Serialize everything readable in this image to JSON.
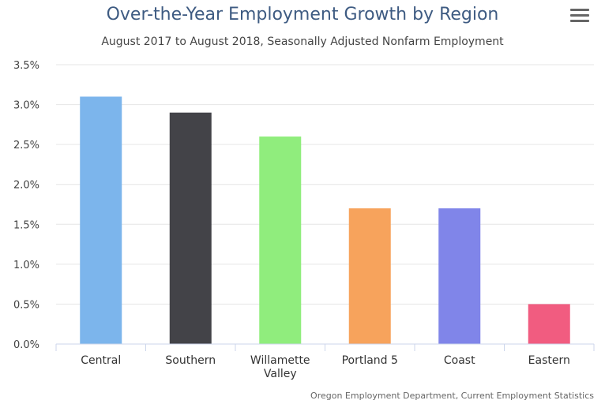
{
  "chart_data": {
    "type": "bar",
    "title": "Over-the-Year Employment Growth by Region",
    "subtitle": "August 2017 to August 2018, Seasonally Adjusted Nonfarm Employment",
    "credits": "Oregon Employment Department, Current Employment Statistics",
    "categories": [
      "Central",
      "Southern",
      "Willamette Valley",
      "Portland 5",
      "Coast",
      "Eastern"
    ],
    "values": [
      3.1,
      2.9,
      2.6,
      1.7,
      1.7,
      0.5
    ],
    "colors": [
      "#7cb5ec",
      "#434348",
      "#90ed7d",
      "#f7a35c",
      "#8085e9",
      "#f15c80"
    ],
    "ylim": [
      0,
      3.5
    ],
    "y_ticks": [
      "0.0%",
      "0.5%",
      "1.0%",
      "1.5%",
      "2.0%",
      "2.5%",
      "3.0%",
      "3.5%"
    ],
    "xlabel": "",
    "ylabel": "",
    "grid": true,
    "legend": "none"
  },
  "menu": {
    "icon": "hamburger-menu-icon"
  }
}
